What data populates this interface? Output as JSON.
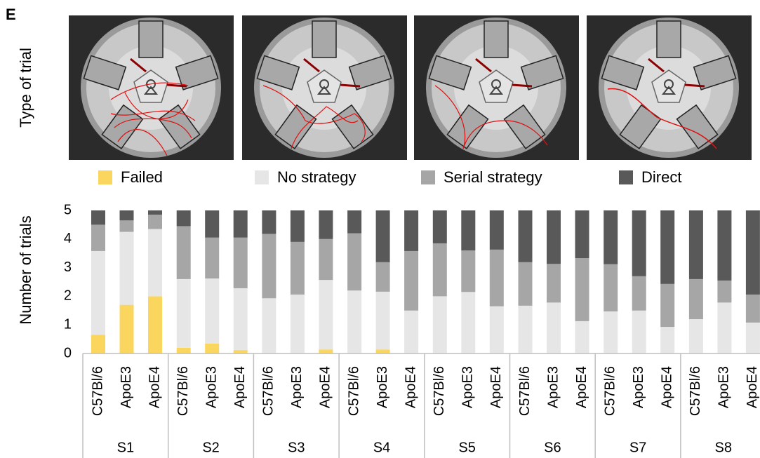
{
  "panel_label": "E",
  "image_label": "Type of trial",
  "chart_data": {
    "type": "stacked_bar",
    "ylabel": "Number of trials",
    "groups": [
      "S1",
      "S2",
      "S3",
      "S4",
      "S5",
      "S6",
      "S7",
      "S8"
    ],
    "categories": [
      "C57Bl/6",
      "ApoE3",
      "ApoE4",
      "C57Bl/6",
      "ApoE3",
      "ApoE4",
      "C57Bl/6",
      "ApoE3",
      "ApoE4",
      "C57Bl/6",
      "ApoE3",
      "ApoE4",
      "C57Bl/6",
      "ApoE3",
      "ApoE4",
      "C57Bl/6",
      "ApoE3",
      "ApoE4",
      "C57Bl/6",
      "ApoE3",
      "ApoE4",
      "C57Bl/6",
      "ApoE3",
      "ApoE4"
    ],
    "series": [
      {
        "name": "Failed",
        "color": "#fbd65e",
        "values": [
          0.65,
          1.7,
          2.0,
          0.2,
          0.35,
          0.12,
          0,
          0,
          0.14,
          0,
          0.14,
          0,
          0,
          0,
          0,
          0,
          0,
          0,
          0,
          0,
          0,
          0,
          0,
          0
        ]
      },
      {
        "name": "No strategy",
        "color": "#e6e6e6",
        "values": [
          2.93,
          2.55,
          2.35,
          2.4,
          2.27,
          2.16,
          1.93,
          2.06,
          2.43,
          2.2,
          2.02,
          1.5,
          2.0,
          2.15,
          1.65,
          1.67,
          1.78,
          1.13,
          1.47,
          1.5,
          0.93,
          1.2,
          1.78,
          1.08
        ]
      },
      {
        "name": "Serial strategy",
        "color": "#a6a6a6",
        "values": [
          0.92,
          0.4,
          0.5,
          1.85,
          1.43,
          1.77,
          2.25,
          1.84,
          1.43,
          2.0,
          1.03,
          2.08,
          1.85,
          1.45,
          1.98,
          1.52,
          1.35,
          2.2,
          1.65,
          1.2,
          1.5,
          1.4,
          0.77,
          0.98
        ]
      },
      {
        "name": "Direct",
        "color": "#595959",
        "values": [
          0.5,
          0.35,
          0.15,
          0.55,
          0.95,
          0.95,
          0.82,
          1.1,
          1.0,
          0.8,
          1.81,
          1.42,
          1.15,
          1.4,
          1.37,
          1.81,
          1.87,
          1.67,
          1.88,
          2.3,
          2.57,
          2.4,
          2.45,
          2.94
        ]
      }
    ],
    "ylim": [
      0,
      5
    ],
    "yticks": [
      0,
      1,
      2,
      3,
      4,
      5
    ]
  }
}
